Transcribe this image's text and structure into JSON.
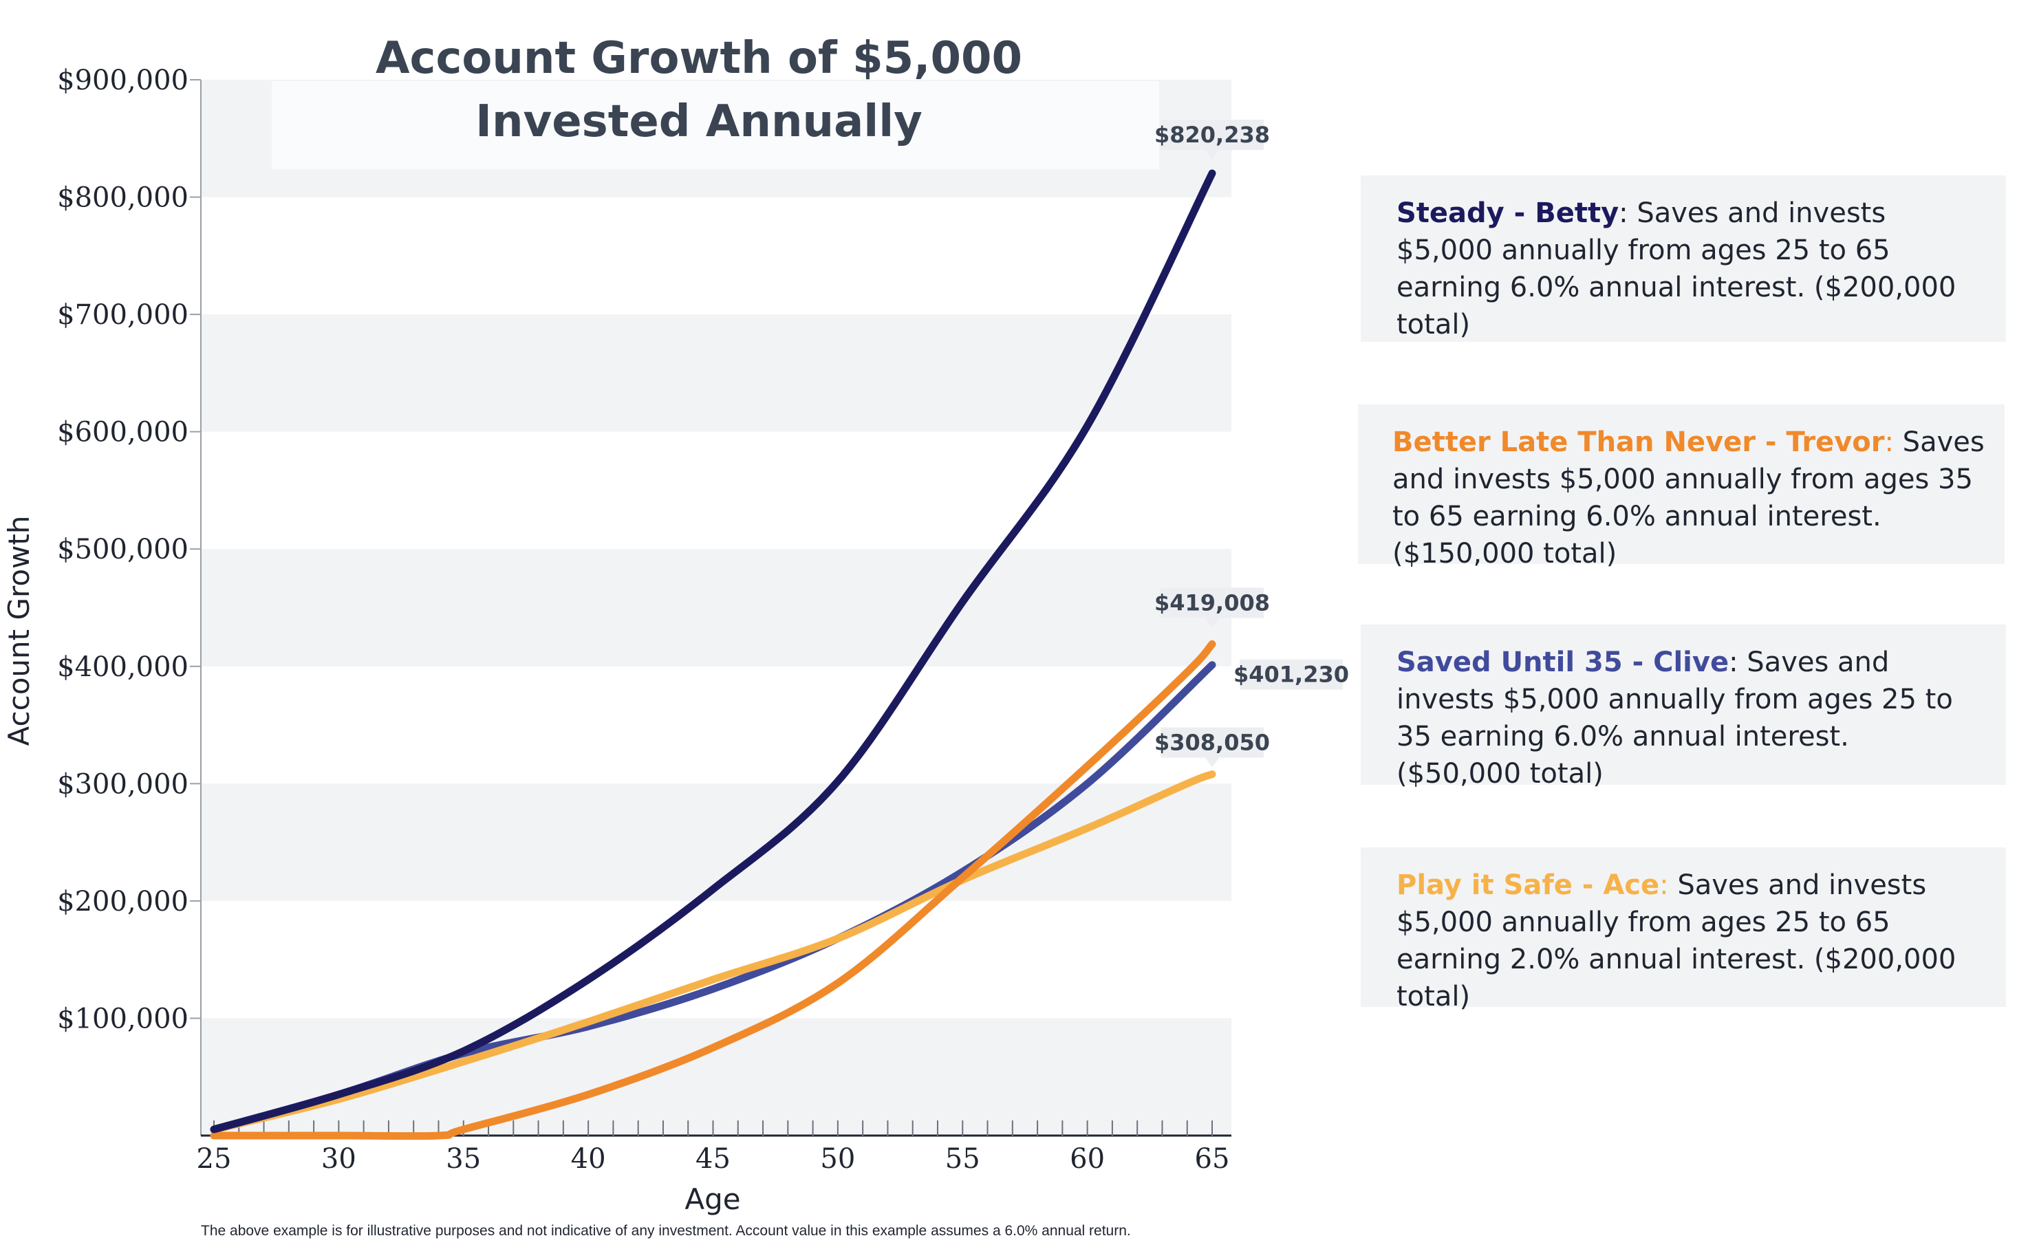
{
  "chart_data": {
    "type": "line",
    "title_lines": [
      "Account Growth of $5,000",
      "Invested Annually"
    ],
    "xlabel": "Age",
    "ylabel": "Account Growth",
    "xlim": [
      25,
      65
    ],
    "ylim": [
      0,
      900000
    ],
    "x_ticks": [
      25,
      30,
      35,
      40,
      45,
      50,
      55,
      60,
      65
    ],
    "x_tick_labels": [
      "25",
      "30",
      "35",
      "40",
      "45",
      "50",
      "55",
      "60",
      "65"
    ],
    "y_ticks": [
      100000,
      200000,
      300000,
      400000,
      500000,
      600000,
      700000,
      800000,
      900000
    ],
    "y_tick_labels": [
      "$100,000",
      "$200,000",
      "$300,000",
      "$400,000",
      "$500,000",
      "$600,000",
      "$700,000",
      "$800,000",
      "$900,000"
    ],
    "grid": "alternating horizontal bands",
    "legend": "right",
    "series": [
      {
        "name": "Steady - Betty",
        "color": "#1c1a5e",
        "x": [
          25,
          30,
          35,
          40,
          45,
          50,
          55,
          60,
          65
        ],
        "values": [
          5300,
          35000,
          72000,
          133000,
          210000,
          302000,
          455000,
          605000,
          820238
        ],
        "end_label": "$820,238"
      },
      {
        "name": "Better Late Than Never - Trevor",
        "color": "#f0892a",
        "x": [
          25,
          30,
          34,
          35,
          40,
          45,
          50,
          55,
          60,
          64,
          65
        ],
        "values": [
          0,
          0,
          0,
          5300,
          35000,
          75000,
          130000,
          220000,
          315000,
          395000,
          419008
        ],
        "end_label": "$419,008"
      },
      {
        "name": "Saved Until 35 - Clive",
        "color": "#414b9c",
        "x": [
          25,
          30,
          35,
          40,
          45,
          50,
          55,
          60,
          65
        ],
        "values": [
          5300,
          35000,
          70000,
          93000,
          125000,
          168000,
          225000,
          300000,
          401230
        ],
        "end_label": "$401,230"
      },
      {
        "name": "Play it Safe - Ace",
        "color": "#f6b248",
        "x": [
          25,
          30,
          35,
          40,
          45,
          50,
          55,
          60,
          64,
          65
        ],
        "values": [
          5100,
          31000,
          63000,
          97000,
          133000,
          168000,
          218000,
          262000,
          300000,
          308050
        ],
        "end_label": "$308,050"
      }
    ],
    "series_draw_order": [
      2,
      3,
      1,
      0
    ]
  },
  "legend": [
    {
      "name": "Steady - Betty",
      "sep": ": ",
      "text": "Saves and invests $5,000 annually from ages 25 to 65 earning 6.0% annual interest. ($200,000 total)",
      "name_color": "#1c1a5e"
    },
    {
      "name": "Better Late Than Never - Trevor",
      "sep": ": ",
      "text": "Saves and invests $5,000 annually from ages 35 to 65 earning 6.0% annual interest. ($150,000 total)",
      "name_color": "#f0892a"
    },
    {
      "name": "Saved Until 35 - Clive",
      "sep": ": ",
      "text": "Saves and invests $5,000 annually from ages 25 to 35 earning 6.0% annual interest. ($50,000 total)",
      "name_color": "#414b9c"
    },
    {
      "name": "Play it Safe - Ace",
      "sep": ": ",
      "text": "Saves and invests $5,000 annually from ages 25 to 65 earning 2.0% annual interest. ($200,000 total)",
      "name_color": "#f6b248"
    }
  ],
  "footnote": "The above example is for illustrative purposes and not indicative of any investment. Account value in this example assumes a 6.0% annual return."
}
